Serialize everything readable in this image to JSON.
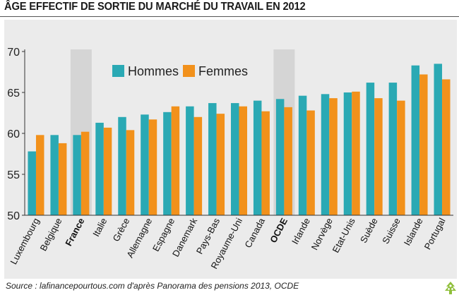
{
  "chart_data": {
    "type": "bar",
    "title": "ÂGE EFFECTIF DE SORTIE DU MARCHÉ DU TRAVAIL EN 2012",
    "xlabel": "",
    "ylabel": "",
    "ylim": [
      50,
      70
    ],
    "yticks": [
      "50",
      "55",
      "60",
      "65",
      "70"
    ],
    "categories": [
      "Luxembourg",
      "Belgique",
      "France",
      "Italie",
      "Grèce",
      "Allemagne",
      "Espagne",
      "Danemark",
      "Pays-Bas",
      "Royaume-Uni",
      "Canada",
      "OCDE",
      "Irlande",
      "Norvège",
      "Etat-Unis",
      "Suède",
      "Suisse",
      "Islande",
      "Portugal"
    ],
    "highlighted": [
      "France",
      "OCDE"
    ],
    "series": [
      {
        "name": "Hommes",
        "color": "#2aa9b4",
        "values": [
          57.8,
          59.8,
          59.8,
          61.3,
          62.0,
          62.3,
          62.6,
          63.3,
          63.7,
          63.7,
          64.0,
          64.2,
          64.6,
          64.8,
          65.0,
          66.2,
          66.2,
          68.3,
          68.5
        ]
      },
      {
        "name": "Femmes",
        "color": "#f2911b",
        "values": [
          59.8,
          58.8,
          60.2,
          60.7,
          60.4,
          61.7,
          63.3,
          62.0,
          62.4,
          63.3,
          62.7,
          63.2,
          62.8,
          64.3,
          65.1,
          64.3,
          64.0,
          67.2,
          66.6
        ]
      }
    ],
    "legend": "top-left"
  },
  "footer": {
    "source": "Source : lafinancepourtous.com d'après Panorama des pensions 2013, OCDE",
    "logo_icon": "tree-logo-icon"
  },
  "colors": {
    "background": "#ebebeb",
    "highlight_band": "#d5d5d5",
    "hommes": "#2aa9b4",
    "femmes": "#f2911b"
  }
}
